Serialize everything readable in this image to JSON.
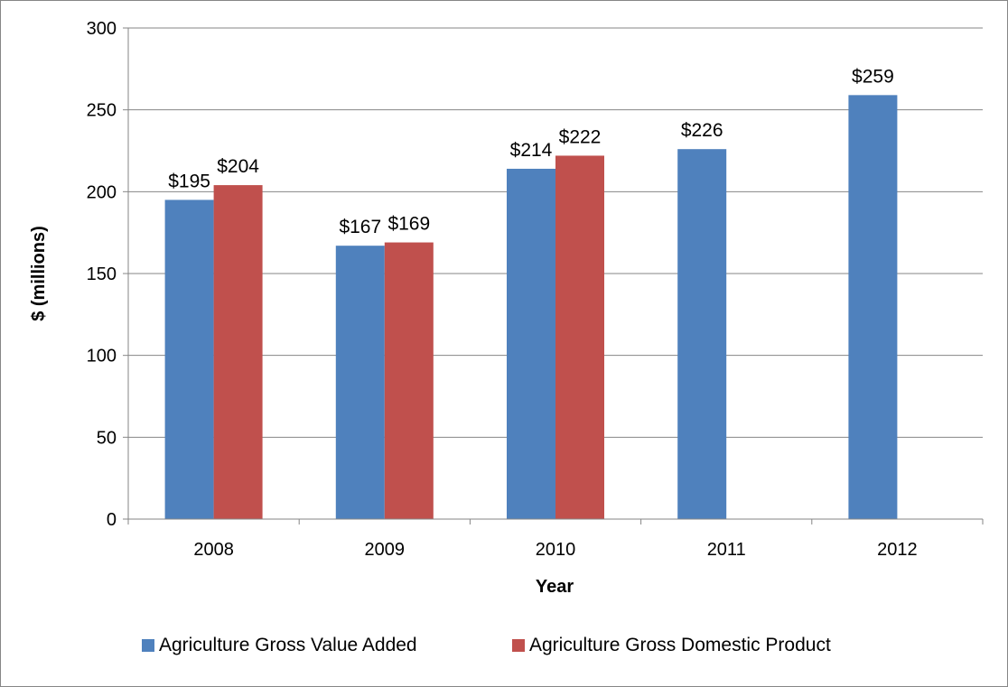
{
  "chart_data": {
    "type": "bar",
    "title": "",
    "xlabel": "Year",
    "ylabel": "$ (millions)",
    "categories": [
      "2008",
      "2009",
      "2010",
      "2011",
      "2012"
    ],
    "series": [
      {
        "name": "Agriculture Gross Value Added",
        "color": "#4F81BD",
        "values": [
          195,
          167,
          214,
          226,
          259
        ],
        "labels": [
          "$195",
          "$167",
          "$214",
          "$226",
          "$259"
        ]
      },
      {
        "name": "Agriculture Gross Domestic Product",
        "color": "#C0504D",
        "values": [
          204,
          169,
          222,
          null,
          null
        ],
        "labels": [
          "$204",
          "$169",
          "$222",
          null,
          null
        ]
      }
    ],
    "ylim": [
      0,
      300
    ],
    "yticks": [
      "0",
      "50",
      "100",
      "150",
      "200",
      "250",
      "300"
    ],
    "grid": true,
    "legend": "bottom"
  }
}
